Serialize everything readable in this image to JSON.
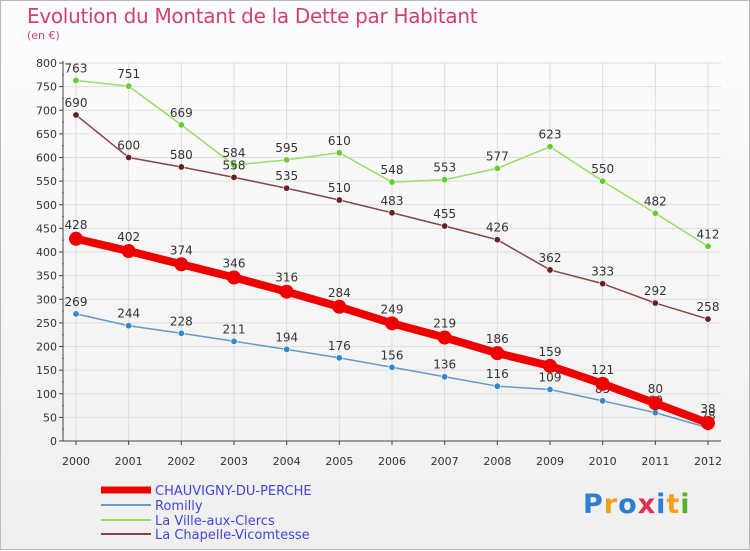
{
  "title": "Evolution du Montant de la Dette par Habitant",
  "subtitle": "(en €)",
  "logo": {
    "text": "Proxiti",
    "colors": [
      "#2f7fd0",
      "#f0a020",
      "#2f7fd0",
      "#e03050",
      "#2f7fd0",
      "#f0a020",
      "#58b030"
    ]
  },
  "chart_data": {
    "type": "line",
    "x": [
      "2000",
      "2001",
      "2002",
      "2003",
      "2004",
      "2005",
      "2006",
      "2007",
      "2008",
      "2009",
      "2010",
      "2011",
      "2012"
    ],
    "ylim": [
      0,
      800
    ],
    "yticks": [
      0,
      50,
      100,
      150,
      200,
      250,
      300,
      350,
      400,
      450,
      500,
      550,
      600,
      650,
      700,
      750,
      800
    ],
    "grid": true,
    "legend_position": "bottom-left",
    "series": [
      {
        "name": "La Ville-aux-Clercs",
        "color": "#99dd66",
        "marker": "#66cc33",
        "values": [
          763,
          751,
          669,
          584,
          595,
          610,
          548,
          553,
          577,
          623,
          550,
          482,
          412
        ]
      },
      {
        "name": "La Chapelle-Vicomtesse",
        "color": "#884444",
        "marker": "#662222",
        "values": [
          690,
          600,
          580,
          558,
          535,
          510,
          483,
          455,
          426,
          362,
          333,
          292,
          258
        ]
      },
      {
        "name": "Romilly",
        "color": "#6699cc",
        "marker": "#3388cc",
        "values": [
          269,
          244,
          228,
          211,
          194,
          176,
          156,
          136,
          116,
          109,
          85,
          60,
          28
        ]
      },
      {
        "name": "CHAUVIGNY-DU-PERCHE",
        "color": "#ee0000",
        "marker": "#ee0000",
        "values": [
          428,
          402,
          374,
          346,
          316,
          284,
          249,
          219,
          186,
          159,
          121,
          80,
          38
        ]
      }
    ],
    "legend_order": [
      "CHAUVIGNY-DU-PERCHE",
      "Romilly",
      "La Ville-aux-Clercs",
      "La Chapelle-Vicomtesse"
    ]
  }
}
